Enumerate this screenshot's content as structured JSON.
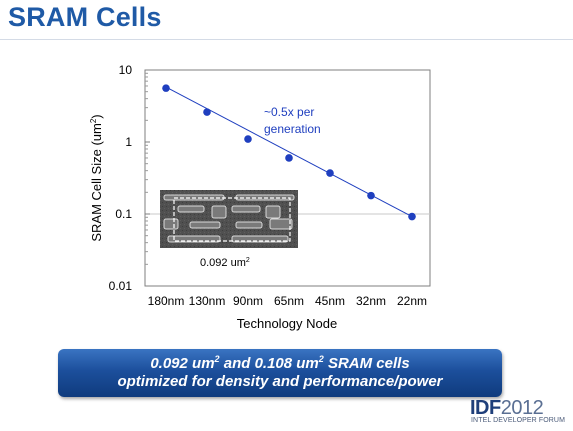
{
  "slide": {
    "title": "SRAM Cells",
    "banner_line1_a": "0.092 um",
    "banner_line1_sup1": "2",
    "banner_line1_b": " and 0.108 um",
    "banner_line1_sup2": "2",
    "banner_line1_c": " SRAM cells",
    "banner_line2": "optimized for density and performance/power",
    "logo_main": "IDF",
    "logo_year": "2012",
    "logo_sub": "INTEL DEVELOPER FORUM"
  },
  "colors": {
    "title": "#1f5aa6",
    "series": "#1f3fbf",
    "banner": "#1c4f9c"
  },
  "chart_data": {
    "type": "scatter",
    "log_y": true,
    "ylabel": "SRAM Cell Size (um",
    "ylabel_sup": "2",
    "ylabel_tail": ")",
    "xlabel": "Technology Node",
    "categories": [
      "180nm",
      "130nm",
      "90nm",
      "65nm",
      "45nm",
      "32nm",
      "22nm"
    ],
    "y_ticks": [
      "10",
      "1",
      "0.1",
      "0.01"
    ],
    "ylim": [
      0.01,
      10
    ],
    "series": [
      {
        "values": [
          5.6,
          2.6,
          1.1,
          0.6,
          0.37,
          0.18,
          0.092
        ]
      }
    ],
    "trendline": {
      "start": 5.8,
      "end": 0.092
    },
    "annotation_line1": "~0.5x per",
    "annotation_line2": "generation",
    "inset_label": "0.092 um",
    "inset_label_sup": "2",
    "grid": false,
    "reference_line_y": 0.1
  }
}
